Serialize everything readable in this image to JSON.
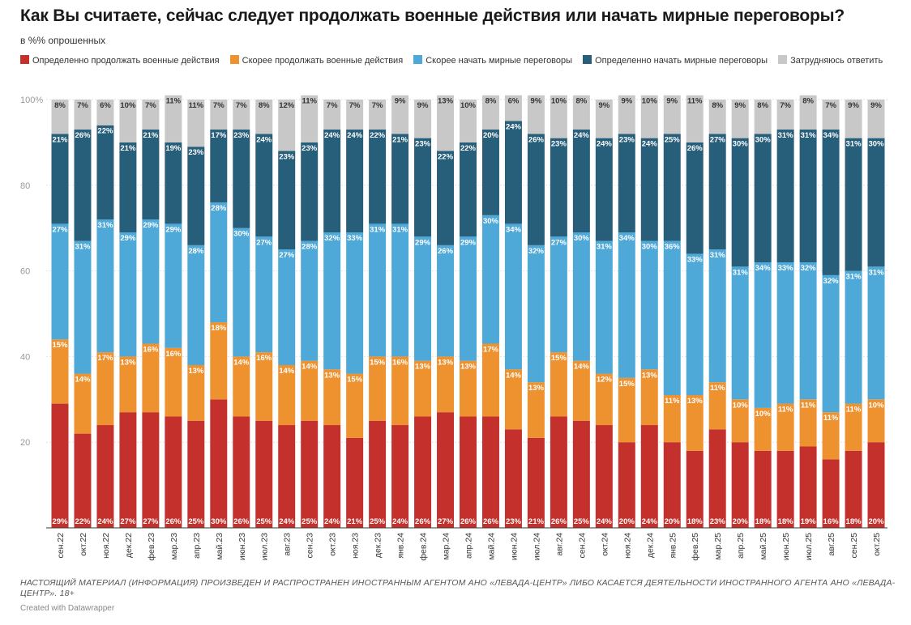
{
  "header": {
    "title": "Как Вы считаете, сейчас следует продолжать военные действия или начать мирные переговоры?",
    "subtitle": "в %% опрошенных"
  },
  "footer": {
    "notice": "НАСТОЯЩИЙ МАТЕРИАЛ (ИНФОРМАЦИЯ) ПРОИЗВЕДЕН И РАСПРОСТРАНЕН ИНОСТРАННЫМ АГЕНТОМ АНО «ЛЕВАДА-ЦЕНТР» ЛИБО КАСАЕТСЯ ДЕЯТЕЛЬНОСТИ ИНОСТРАННОГО АГЕНТА АНО «ЛЕВАДА-ЦЕНТР». 18+",
    "credit": "Created with Datawrapper"
  },
  "chart_data": {
    "type": "bar",
    "stacked": true,
    "title": "Как Вы считаете, сейчас следует продолжать военные действия или начать мирные переговоры?",
    "ylim": [
      0,
      100
    ],
    "yticks": [
      20,
      40,
      60,
      80,
      100
    ],
    "ytick_labels": [
      "20",
      "40",
      "60",
      "80",
      "100%"
    ],
    "categories": [
      "сен.22",
      "окт.22",
      "ноя.22",
      "дек.22",
      "фев.23",
      "мар.23",
      "апр.23",
      "май.23",
      "июн.23",
      "июл.23",
      "авг.23",
      "сен.23",
      "окт.23",
      "ноя.23",
      "дек.23",
      "янв.24",
      "фев.24",
      "мар.24",
      "апр.24",
      "май.24",
      "июн.24",
      "июл.24",
      "авг.24",
      "сен.24",
      "окт.24",
      "ноя.24",
      "дек.24",
      "янв.25",
      "фев.25",
      "мар.25",
      "апр.25",
      "май.25",
      "июн.25",
      "июл.25",
      "авг.25",
      "сен.25",
      "окт.25"
    ],
    "series": [
      {
        "name": "Определенно продолжать военные действия",
        "color": "#c4302b",
        "values": [
          29,
          22,
          24,
          27,
          27,
          26,
          25,
          30,
          26,
          25,
          24,
          25,
          24,
          21,
          25,
          24,
          26,
          27,
          26,
          26,
          23,
          21,
          26,
          25,
          24,
          20,
          24,
          20,
          18,
          23,
          20,
          18,
          18,
          19,
          16,
          18,
          20
        ]
      },
      {
        "name": "Скорее продолжать военные действия",
        "color": "#ee922f",
        "values": [
          15,
          14,
          17,
          13,
          16,
          16,
          13,
          18,
          14,
          16,
          14,
          14,
          13,
          15,
          15,
          16,
          13,
          13,
          13,
          17,
          14,
          13,
          15,
          14,
          12,
          15,
          13,
          11,
          13,
          11,
          10,
          10,
          11,
          11,
          11,
          11,
          10
        ]
      },
      {
        "name": "Скорее начать мирные переговоры",
        "color": "#4ea8d8",
        "values": [
          27,
          31,
          31,
          29,
          29,
          29,
          28,
          28,
          30,
          27,
          27,
          28,
          32,
          33,
          31,
          31,
          29,
          26,
          29,
          30,
          34,
          32,
          27,
          30,
          31,
          34,
          30,
          36,
          33,
          31,
          31,
          34,
          33,
          32,
          32,
          31,
          31
        ]
      },
      {
        "name": "Определенно начать мирные переговоры",
        "color": "#275e7a",
        "values": [
          21,
          26,
          22,
          21,
          21,
          19,
          23,
          17,
          23,
          24,
          23,
          23,
          24,
          24,
          22,
          21,
          23,
          22,
          22,
          20,
          24,
          26,
          23,
          24,
          24,
          23,
          24,
          25,
          26,
          27,
          30,
          30,
          31,
          31,
          34,
          31,
          30
        ]
      },
      {
        "name": "Затрудняюсь ответить",
        "color": "#c8c8c8",
        "values": [
          8,
          7,
          6,
          10,
          7,
          11,
          11,
          7,
          7,
          8,
          12,
          11,
          7,
          7,
          7,
          9,
          9,
          13,
          10,
          8,
          6,
          9,
          10,
          8,
          9,
          9,
          10,
          9,
          11,
          8,
          9,
          8,
          7,
          8,
          7,
          9,
          9
        ]
      }
    ]
  }
}
